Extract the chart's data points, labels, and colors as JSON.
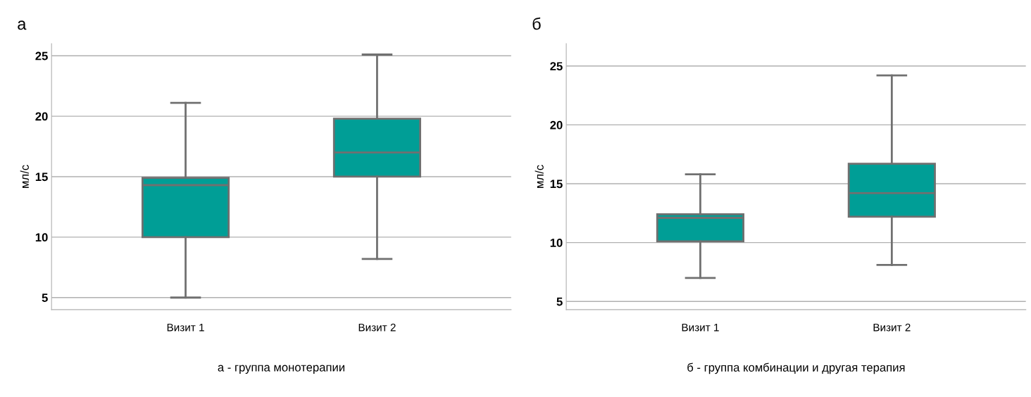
{
  "chart_data": [
    {
      "type": "box",
      "title": "а",
      "ylabel": "мл/с",
      "categories": [
        "Визит 1",
        "Визит 2"
      ],
      "color": "#009e96",
      "grid": "y",
      "ylim": [
        4.0,
        26.0
      ],
      "yticks": [
        5,
        10,
        15,
        20,
        25
      ],
      "annotations": [
        "а - группа монотерапии"
      ],
      "boxes": [
        {
          "low": 5,
          "q1": 10,
          "median": 14.3,
          "q3": 14.9,
          "high": 21.1
        },
        {
          "low": 8.2,
          "q1": 15,
          "median": 17,
          "q3": 19.8,
          "high": 25.1
        }
      ]
    },
    {
      "type": "box",
      "title": "б",
      "ylabel": "мл/с",
      "categories": [
        "Визит 1",
        "Визит 2"
      ],
      "color": "#009e96",
      "grid": "y",
      "ylim": [
        4.3,
        26.9
      ],
      "yticks": [
        5,
        10,
        15,
        20,
        25
      ],
      "annotations": [
        "б - группа комбинации и другая терапия"
      ],
      "boxes": [
        {
          "low": 7,
          "q1": 10.1,
          "median": 12.1,
          "q3": 12.4,
          "high": 15.8
        },
        {
          "low": 8.1,
          "q1": 12.2,
          "median": 14.2,
          "q3": 16.7,
          "high": 24.2
        }
      ]
    }
  ]
}
